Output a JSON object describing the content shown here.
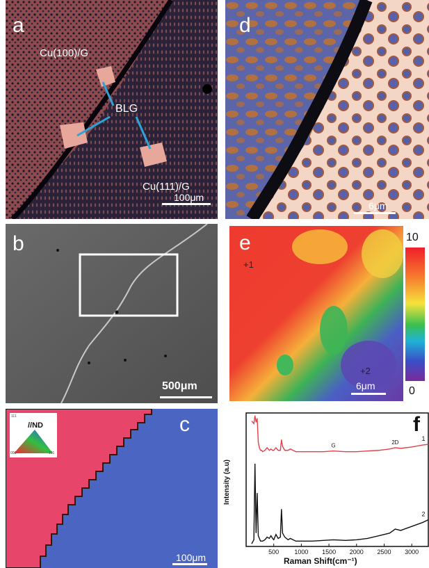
{
  "panels": {
    "a": {
      "label": "a",
      "annotations": {
        "cu100": "Cu(100)/G",
        "blg": "BLG",
        "cu111": "Cu(111)/G"
      },
      "scale": "100μm"
    },
    "b": {
      "label": "b",
      "scale": "500μm"
    },
    "c": {
      "label": "c",
      "legend_title": "//ND",
      "legend_ticks": [
        "001",
        "101",
        "111"
      ],
      "scale": "100μm"
    },
    "d": {
      "label": "d",
      "scale": "6μm"
    },
    "e": {
      "label": "e",
      "markers": [
        "+1",
        "+2"
      ],
      "scale": "6μm",
      "colorbar": {
        "max": "10",
        "min": "0"
      }
    },
    "f": {
      "label": "f"
    }
  },
  "chart_data": {
    "type": "line",
    "xlabel": "Raman Shift(cm⁻¹)",
    "ylabel": "Intensity (a.u)",
    "xlim": [
      0,
      3300
    ],
    "xticks": [
      "500",
      "1000",
      "1500",
      "2000",
      "2500",
      "3000"
    ],
    "xtick_values": [
      500,
      1000,
      1500,
      2000,
      2500,
      3000
    ],
    "peak_labels": [
      "G",
      "2D"
    ],
    "peak_positions": [
      1580,
      2700
    ],
    "series": [
      {
        "name": "1",
        "color": "#e5404a",
        "x": [
          100,
          140,
          160,
          180,
          200,
          220,
          240,
          260,
          280,
          300,
          340,
          380,
          420,
          450,
          480,
          500,
          540,
          580,
          620,
          640,
          660,
          700,
          760,
          800,
          900,
          1000,
          1200,
          1400,
          1580,
          1800,
          2000,
          2200,
          2400,
          2600,
          2700,
          2800,
          3000,
          3200,
          3300
        ],
        "y": [
          0.94,
          0.92,
          0.98,
          0.93,
          0.96,
          0.78,
          0.74,
          0.72,
          0.72,
          0.71,
          0.72,
          0.74,
          0.72,
          0.73,
          0.72,
          0.72,
          0.74,
          0.72,
          0.72,
          0.8,
          0.75,
          0.72,
          0.72,
          0.73,
          0.71,
          0.71,
          0.71,
          0.71,
          0.715,
          0.71,
          0.71,
          0.715,
          0.72,
          0.73,
          0.74,
          0.735,
          0.745,
          0.76,
          0.765
        ]
      },
      {
        "name": "2",
        "color": "#111111",
        "x": [
          100,
          140,
          160,
          180,
          200,
          220,
          240,
          260,
          280,
          300,
          340,
          380,
          420,
          450,
          480,
          500,
          540,
          580,
          620,
          640,
          660,
          700,
          760,
          800,
          900,
          1000,
          1200,
          1400,
          1580,
          1800,
          2000,
          2200,
          2400,
          2600,
          2700,
          2800,
          3000,
          3200,
          3300
        ],
        "y": [
          0.02,
          0.05,
          0.62,
          0.1,
          0.4,
          0.08,
          0.06,
          0.04,
          0.04,
          0.04,
          0.05,
          0.07,
          0.06,
          0.08,
          0.06,
          0.05,
          0.09,
          0.06,
          0.07,
          0.28,
          0.1,
          0.07,
          0.05,
          0.06,
          0.04,
          0.04,
          0.04,
          0.045,
          0.05,
          0.045,
          0.05,
          0.06,
          0.08,
          0.1,
          0.13,
          0.12,
          0.15,
          0.18,
          0.2
        ]
      }
    ]
  }
}
